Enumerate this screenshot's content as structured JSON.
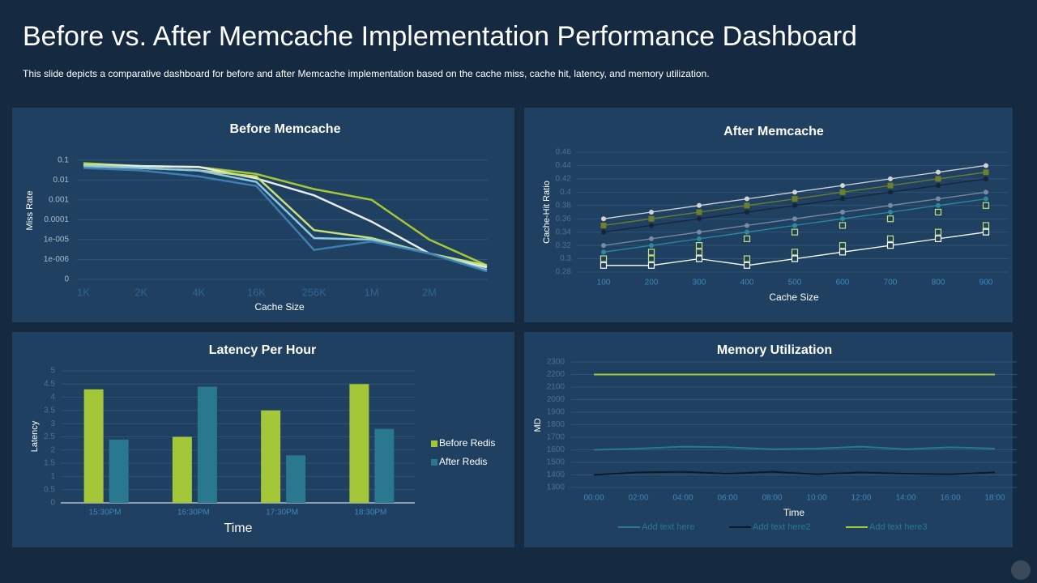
{
  "title": "Before vs. After Memcache Implementation Performance Dashboard",
  "subtitle": "This slide depicts a comparative  dashboard  for before  and after Memcache implementation  based on the cache miss, cache hit, latency, and memory utilization.",
  "chart_data": [
    {
      "type": "line",
      "title": "Before Memcache",
      "y_label": "Miss Rate",
      "x_label": "Cache Size",
      "log_scale": true,
      "grid": true,
      "categories": [
        "1K",
        "2K",
        "4K",
        "16K",
        "256K",
        "1M",
        "2M",
        null
      ],
      "ylim": [
        1e-07,
        0.3
      ],
      "yticks": [
        0.1,
        0.01,
        0.001,
        0.0001,
        {
          "value": 1e-05,
          "label": "1e-005"
        },
        {
          "value": 1e-06,
          "label": "1e-006"
        },
        {
          "value": 1e-07,
          "label": "0"
        }
      ],
      "series": [
        {
          "color": "#a4c639",
          "values": [
            0.07,
            0.05,
            0.045,
            0.02,
            0.0035,
            0.001,
            1e-05,
            5e-07
          ]
        },
        {
          "color": "#e8ece8",
          "values": [
            0.06,
            0.05,
            0.045,
            0.012,
            0.0017,
            8e-05,
            2e-06,
            4e-07
          ]
        },
        {
          "color": "#c6e07a",
          "values": [
            0.06,
            0.04,
            0.03,
            0.015,
            3e-05,
            1.2e-05,
            2e-06,
            5e-07
          ]
        },
        {
          "color": "#8cc8e0",
          "values": [
            0.05,
            0.04,
            0.03,
            0.008,
            1.2e-05,
            1e-05,
            2e-06,
            3e-07
          ]
        },
        {
          "color": "#3d7fb0",
          "values": [
            0.04,
            0.03,
            0.015,
            0.005,
            3e-06,
            8e-06,
            2e-06,
            2.5e-07
          ]
        }
      ]
    },
    {
      "type": "line",
      "title": "After Memcache",
      "y_label": "Cache-Hit  Ratio",
      "x_label": "Cache Size",
      "grid": true,
      "categories": [
        100,
        200,
        300,
        400,
        500,
        600,
        700,
        800,
        900
      ],
      "ylim": [
        0.28,
        0.46
      ],
      "yticks": [
        0.28,
        0.3,
        0.32,
        0.34,
        0.36,
        0.38,
        0.4,
        0.42,
        0.44,
        0.46
      ],
      "series": [
        {
          "color": "#d0d4d8",
          "marker": "circle",
          "line": true,
          "values": [
            0.36,
            0.37,
            0.38,
            0.39,
            0.4,
            0.41,
            0.42,
            0.43,
            0.44
          ]
        },
        {
          "color": "#6e7f2c",
          "marker": "square",
          "line": true,
          "values": [
            0.35,
            0.36,
            0.37,
            0.38,
            0.39,
            0.4,
            0.41,
            0.42,
            0.43
          ]
        },
        {
          "color": "#15243a",
          "marker": "circle",
          "line": true,
          "values": [
            0.34,
            0.35,
            0.36,
            0.37,
            0.38,
            0.39,
            0.4,
            0.41,
            0.42
          ]
        },
        {
          "color": "#7a8aa0",
          "marker": "circle",
          "line": true,
          "values": [
            0.32,
            0.33,
            0.34,
            0.35,
            0.36,
            0.37,
            0.38,
            0.39,
            0.4
          ]
        },
        {
          "color": "#2a8aa0",
          "marker": "circle",
          "line": true,
          "values": [
            0.31,
            0.32,
            0.33,
            0.34,
            0.35,
            0.36,
            0.37,
            0.38,
            0.39
          ]
        },
        {
          "color": "#c6e07a",
          "marker": "square-hollow",
          "line": false,
          "values": [
            0.3,
            0.31,
            0.32,
            0.33,
            0.34,
            0.35,
            0.36,
            0.37,
            0.38
          ]
        },
        {
          "color": "#c6e07a",
          "marker": "square-hollow",
          "line": false,
          "values": [
            0.3,
            0.3,
            0.31,
            0.3,
            0.31,
            0.32,
            0.33,
            0.34,
            0.35
          ]
        },
        {
          "color": "#ffffff",
          "marker": "square-hollow",
          "line": true,
          "values": [
            0.29,
            0.29,
            0.3,
            0.29,
            0.3,
            0.31,
            0.32,
            0.33,
            0.34
          ]
        }
      ]
    },
    {
      "type": "bar",
      "title": "Latency Per Hour",
      "y_label": "Latency",
      "x_label": "Time",
      "grid": true,
      "legend": "right",
      "categories": [
        "15:30PM",
        "16:30PM",
        "17:30PM",
        "18:30PM"
      ],
      "ylim": [
        0,
        5
      ],
      "yticks": [
        0,
        0.5,
        1,
        1.5,
        2,
        2.5,
        3,
        3.5,
        4,
        4.5,
        5
      ],
      "series": [
        {
          "name": "Before Redis",
          "color": "#a4c639",
          "values": [
            4.3,
            2.5,
            3.5,
            4.5
          ]
        },
        {
          "name": "After Redis",
          "color": "#2a7890",
          "values": [
            2.4,
            4.4,
            1.8,
            2.8
          ]
        }
      ]
    },
    {
      "type": "line",
      "title": "Memory Utilization",
      "y_label": "MD",
      "x_label": "Time",
      "grid": true,
      "legend": "bottom",
      "categories": [
        "00:00",
        "02:00",
        "04:00",
        "06:00",
        "08:00",
        "10:00",
        "12:00",
        "14:00",
        "16:00",
        "18:00"
      ],
      "ylim": [
        1300,
        2300
      ],
      "yticks": [
        1300,
        1400,
        1500,
        1600,
        1700,
        1800,
        1900,
        2000,
        2100,
        2200,
        2300
      ],
      "series": [
        {
          "name": "Add text here",
          "color": "#2a7890",
          "values": [
            1600,
            1610,
            1625,
            1620,
            1605,
            1610,
            1625,
            1605,
            1620,
            1610
          ]
        },
        {
          "name": "Add text here2",
          "color": "#0d1a28",
          "values": [
            1400,
            1420,
            1425,
            1410,
            1425,
            1405,
            1420,
            1410,
            1405,
            1420
          ]
        },
        {
          "name": "Add text here3",
          "color": "#a4c639",
          "values": [
            2200,
            2200,
            2200,
            2200,
            2200,
            2200,
            2200,
            2200,
            2200,
            2200
          ]
        }
      ]
    }
  ]
}
